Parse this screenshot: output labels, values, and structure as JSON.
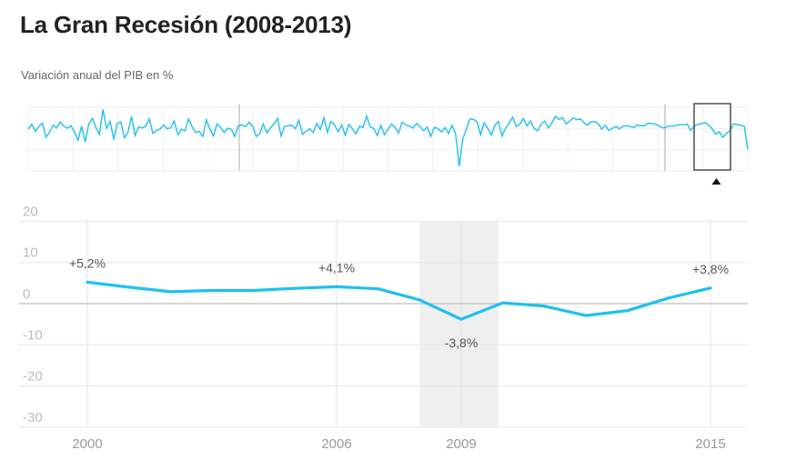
{
  "title": "La Gran Recesión (2008-2013)",
  "subtitle": "Variación anual del PIB en %",
  "colors": {
    "line": "#1ec0f2",
    "recession_band": "#efefef",
    "grid": "#e6e6e6",
    "zero": "#bdbdbd"
  },
  "overview": {
    "brush_marker": "triangle-up-icon",
    "values": [
      0.2,
      1.4,
      -0.3,
      0.8,
      1.6,
      -1.7,
      -0.5,
      1.1,
      0.5,
      1.9,
      0.9,
      0.4,
      1.0,
      -0.5,
      -2.4,
      0.9,
      -2.8,
      1.4,
      2.7,
      0.6,
      -1.0,
      4.8,
      0.4,
      2.0,
      -2.2,
      1.5,
      1.9,
      -1.8,
      -0.6,
      3.2,
      -1.3,
      0.7,
      0.5,
      0.9,
      2.6,
      -0.8,
      -0.1,
      0.2,
      1.2,
      0.3,
      0.5,
      2.1,
      -1.1,
      0.2,
      -0.2,
      2.6,
      0.8,
      -0.6,
      -0.3,
      -1.5,
      2.4,
      0.2,
      -1.4,
      1.4,
      0.6,
      -0.6,
      0.4,
      0.2,
      -1.5,
      1.0,
      1.2,
      0.8,
      1.8,
      0.9,
      -1.5,
      -0.9,
      1.4,
      -0.7,
      0.5,
      1.4,
      2.7,
      -1.4,
      0.9,
      1.0,
      1.1,
      0.3,
      2.3,
      -1.0,
      -0.3,
      0.3,
      -0.6,
      1.5,
      0.1,
      2.9,
      -0.6,
      2.0,
      1.2,
      -0.4,
      1.2,
      -1.2,
      1.3,
      0.3,
      -0.9,
      0.9,
      0.6,
      3.3,
      0.7,
      0.4,
      -1.3,
      1.1,
      -1.1,
      0.2,
      1.4,
      0.6,
      -0.7,
      1.8,
      1.2,
      0.9,
      0.5,
      1.5,
      0.8,
      -0.2,
      0.7,
      -1.5,
      0.6,
      0.4,
      -0.5,
      0.6,
      -0.8,
      1.1,
      -1.0,
      -8.5,
      -2.0,
      0.2,
      2.6,
      2.5,
      1.9,
      -1.1,
      1.7,
      0.4,
      -1.2,
      1.1,
      2.0,
      -1.4,
      0.4,
      1.6,
      3.0,
      0.8,
      1.3,
      2.7,
      1.0,
      2.1,
      0.4,
      -0.2,
      1.4,
      2.1,
      0.5,
      1.6,
      3.2,
      2.5,
      2.9,
      1.4,
      2.1,
      2.8,
      2.4,
      2.6,
      1.7,
      1.1,
      1.9,
      2.0,
      1.5,
      0.2,
      1.1,
      -0.1,
      0.4,
      0.8,
      0.3,
      0.9,
      1.0,
      0.8,
      0.6,
      1.2,
      1.0,
      1.0,
      1.6,
      1.5,
      1.4,
      1.0,
      0.5,
      0.6,
      1.0,
      0.9,
      1.1,
      1.3,
      1.2,
      1.4,
      -0.1,
      1.0,
      1.3,
      1.5,
      1.7,
      1.2,
      0.3,
      -1.0,
      -0.4,
      -1.7,
      -0.8,
      -0.2,
      1.4,
      1.3,
      1.1,
      0.9,
      -4.6
    ]
  },
  "chart_data": {
    "type": "line",
    "title": "La Gran Recesión (2008-2013)",
    "ylabel": "Variación anual del PIB en %",
    "ylim": [
      -30,
      20
    ],
    "yticks": [
      20,
      10,
      0,
      -10,
      -20,
      -30
    ],
    "xticks": [
      2000,
      2006,
      2009,
      2015
    ],
    "xlim": [
      1999.7,
      2015.8
    ],
    "grid": true,
    "recession_band": [
      2008,
      2009.9
    ],
    "series": [
      {
        "x": [
          2000,
          2001,
          2002,
          2003,
          2004,
          2005,
          2006,
          2007,
          2008,
          2009,
          2010,
          2011,
          2012,
          2013,
          2014,
          2015
        ],
        "values": [
          5.2,
          4.0,
          2.9,
          3.2,
          3.2,
          3.7,
          4.1,
          3.6,
          0.9,
          -3.8,
          0.2,
          -0.6,
          -2.9,
          -1.7,
          1.4,
          3.8
        ]
      }
    ],
    "annotations": [
      {
        "x": 2000,
        "y": 5.2,
        "text": "+5,2%",
        "position": "above"
      },
      {
        "x": 2006,
        "y": 4.1,
        "text": "+4,1%",
        "position": "above"
      },
      {
        "x": 2009,
        "y": -3.8,
        "text": "-3,8%",
        "position": "below"
      },
      {
        "x": 2015,
        "y": 3.8,
        "text": "+3,8%",
        "position": "above"
      }
    ]
  }
}
